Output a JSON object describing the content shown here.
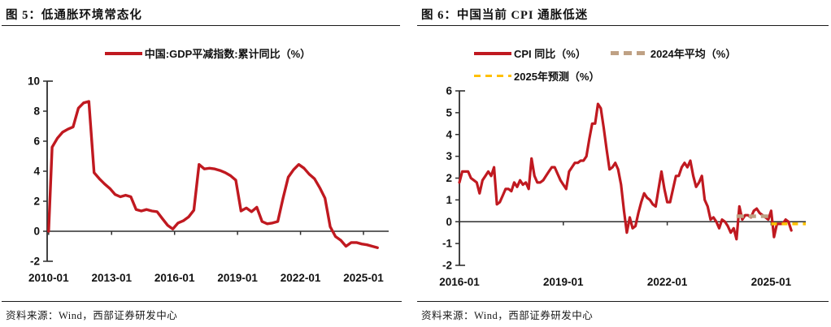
{
  "page": {
    "background": "#ffffff",
    "axis_color": "#2e2e2e",
    "text_color": "#111111",
    "accent_red": "#c01920"
  },
  "figure5": {
    "title": "图 5：低通胀环境常态化",
    "source": "资料来源：Wind，西部证券研发中心",
    "legend": [
      {
        "label": "中国:GDP平减指数:累计同比（%）",
        "color": "#c01920",
        "style": "solid"
      }
    ],
    "chart_data": {
      "type": "line",
      "title": "低通胀环境常态化",
      "xlabel": "",
      "ylabel": "",
      "ylim": [
        -2,
        10
      ],
      "ytick_step": 2,
      "xlim": [
        2009.93,
        2026.2
      ],
      "xticks": [
        "2010-01",
        "2013-01",
        "2016-01",
        "2019-01",
        "2022-01",
        "2025-01"
      ],
      "grid": false,
      "legend_position": "top",
      "series": [
        {
          "id": "gdp-deflator",
          "name": "中国:GDP平减指数:累计同比（%）",
          "color": "#c01920",
          "width": 3.4,
          "dash": null,
          "dates": [
            "2010-01",
            "2010-03",
            "2010-06",
            "2010-09",
            "2010-12",
            "2011-03",
            "2011-06",
            "2011-09",
            "2011-12",
            "2012-03",
            "2012-06",
            "2012-09",
            "2012-12",
            "2013-03",
            "2013-06",
            "2013-09",
            "2013-12",
            "2014-03",
            "2014-06",
            "2014-09",
            "2014-12",
            "2015-03",
            "2015-06",
            "2015-09",
            "2015-12",
            "2016-03",
            "2016-06",
            "2016-09",
            "2016-12",
            "2017-03",
            "2017-06",
            "2017-09",
            "2017-12",
            "2018-03",
            "2018-06",
            "2018-09",
            "2018-12",
            "2019-03",
            "2019-06",
            "2019-09",
            "2019-12",
            "2020-03",
            "2020-06",
            "2020-09",
            "2020-12",
            "2021-03",
            "2021-06",
            "2021-09",
            "2021-12",
            "2022-03",
            "2022-06",
            "2022-09",
            "2022-12",
            "2023-03",
            "2023-06",
            "2023-09",
            "2023-12",
            "2024-03",
            "2024-06",
            "2024-09",
            "2024-12",
            "2025-03",
            "2025-06",
            "2025-09"
          ],
          "values": [
            0.0,
            5.6,
            6.2,
            6.6,
            6.8,
            6.95,
            8.2,
            8.55,
            8.65,
            3.9,
            3.5,
            3.15,
            2.85,
            2.45,
            2.3,
            2.4,
            2.3,
            1.45,
            1.35,
            1.45,
            1.35,
            1.3,
            0.85,
            0.4,
            0.15,
            0.55,
            0.7,
            0.95,
            1.4,
            4.45,
            4.15,
            4.2,
            4.15,
            4.05,
            3.9,
            3.7,
            3.4,
            1.35,
            1.55,
            1.3,
            1.6,
            0.65,
            0.5,
            0.55,
            0.65,
            2.2,
            3.6,
            4.1,
            4.45,
            4.2,
            3.8,
            3.5,
            2.9,
            2.2,
            0.3,
            -0.35,
            -0.6,
            -1.0,
            -0.75,
            -0.75,
            -0.85,
            -0.9,
            -1.0,
            -1.1
          ]
        }
      ]
    }
  },
  "figure6": {
    "title": "图 6：中国当前 CPI 通胀低迷",
    "source": "资料来源：Wind，西部证券研发中心",
    "legend": [
      {
        "label": "CPI 同比（%）",
        "color": "#c01920",
        "style": "solid"
      },
      {
        "label": "2024年平均（%）",
        "color": "#bfa184",
        "style": "dashed"
      },
      {
        "label": "2025年预测（%）",
        "color": "#ffc000",
        "style": "dashed"
      }
    ],
    "chart_data": {
      "type": "line",
      "title": "中国当前 CPI 通胀低迷",
      "xlabel": "",
      "ylabel": "",
      "ylim": [
        -2,
        6
      ],
      "ytick_step": 1,
      "xlim": [
        2016.0,
        2026.0
      ],
      "xticks": [
        "2016-01",
        "2019-01",
        "2022-01",
        "2025-01"
      ],
      "grid": false,
      "legend_position": "top",
      "series": [
        {
          "id": "cpi-yoy",
          "name": "CPI 同比（%）",
          "color": "#c01920",
          "width": 3.2,
          "dash": null,
          "start": "2016-01",
          "values": [
            1.8,
            2.3,
            2.3,
            2.3,
            2.0,
            1.9,
            1.8,
            1.3,
            1.9,
            2.1,
            2.3,
            2.1,
            2.5,
            0.8,
            0.9,
            1.2,
            1.5,
            1.5,
            1.4,
            1.8,
            1.6,
            1.9,
            1.7,
            1.8,
            1.5,
            2.9,
            2.1,
            1.8,
            1.8,
            1.9,
            2.1,
            2.3,
            2.5,
            2.5,
            2.2,
            1.9,
            1.7,
            1.5,
            2.3,
            2.5,
            2.7,
            2.7,
            2.8,
            2.8,
            3.0,
            3.8,
            4.5,
            4.5,
            5.4,
            5.2,
            4.3,
            3.3,
            2.4,
            2.5,
            2.7,
            2.4,
            1.7,
            0.5,
            -0.5,
            0.2,
            -0.3,
            -0.2,
            0.4,
            0.9,
            1.3,
            1.1,
            1.0,
            0.8,
            0.7,
            1.5,
            2.3,
            1.5,
            0.9,
            0.9,
            1.5,
            2.1,
            2.1,
            2.5,
            2.7,
            2.5,
            2.8,
            2.1,
            1.6,
            1.8,
            2.1,
            1.0,
            0.7,
            0.1,
            0.2,
            0.0,
            -0.3,
            0.1,
            0.0,
            -0.2,
            -0.5,
            -0.3,
            -0.8,
            0.7,
            0.1,
            0.3,
            0.3,
            0.2,
            0.5,
            0.6,
            0.4,
            0.3,
            0.2,
            0.1,
            0.5,
            -0.7,
            -0.1,
            -0.1,
            -0.1,
            0.1,
            0.0,
            -0.4
          ]
        },
        {
          "id": "avg-2024",
          "name": "2024年平均（%）",
          "color": "#bfa184",
          "width": 4.5,
          "dash": "9 6",
          "dates": [
            "2024-01",
            "2025-01"
          ],
          "values": [
            0.25,
            0.25
          ]
        },
        {
          "id": "forecast-2025",
          "name": "2025年预测（%）",
          "color": "#ffc000",
          "width": 3.5,
          "dash": "7 6",
          "dates": [
            "2025-01",
            "2026-01"
          ],
          "values": [
            -0.1,
            -0.1
          ]
        }
      ]
    }
  }
}
